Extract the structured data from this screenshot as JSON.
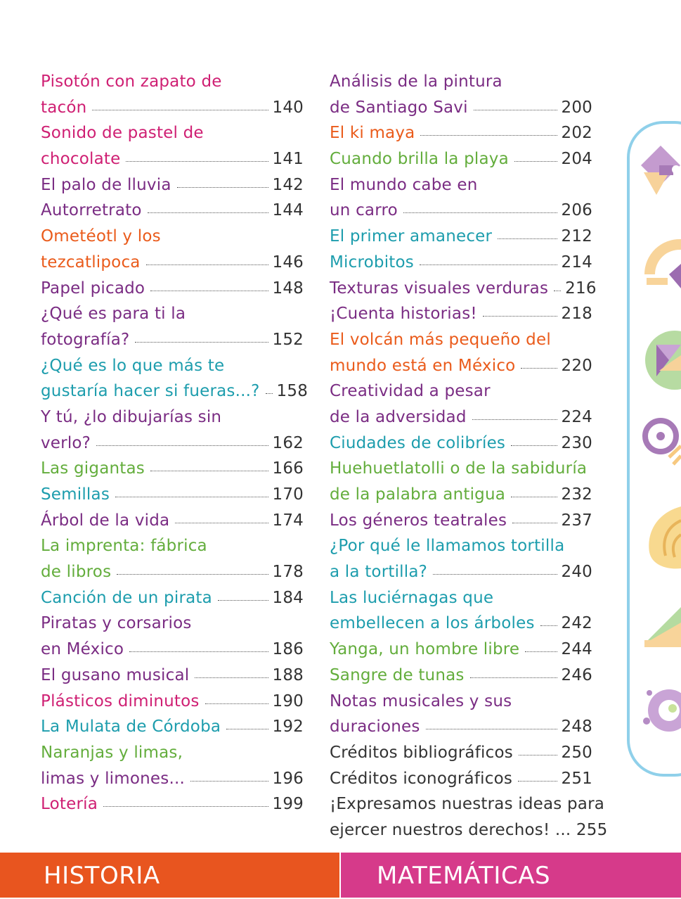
{
  "colors": {
    "magenta": "#cf1f73",
    "purple": "#7a2c83",
    "orange": "#ea5b1b",
    "teal": "#1d9dad",
    "green": "#63ad3c",
    "dark": "#333333"
  },
  "left_column": [
    {
      "text": "Pisotón con zapato de",
      "page": "",
      "color": "magenta"
    },
    {
      "text": "tacón",
      "page": "140",
      "color": "magenta"
    },
    {
      "text": "Sonido de pastel de",
      "page": "",
      "color": "magenta"
    },
    {
      "text": "chocolate",
      "page": "141",
      "color": "magenta"
    },
    {
      "text": "El palo de lluvia",
      "page": "142",
      "color": "purple"
    },
    {
      "text": "Autorretrato",
      "page": "144",
      "color": "purple"
    },
    {
      "text": "Ometéotl y los",
      "page": "",
      "color": "orange"
    },
    {
      "text": "tezcatlipoca",
      "page": "146",
      "color": "orange"
    },
    {
      "text": "Papel picado",
      "page": "148",
      "color": "purple"
    },
    {
      "text": "¿Qué es para ti la",
      "page": "",
      "color": "purple"
    },
    {
      "text": "fotografía?",
      "page": "152",
      "color": "purple"
    },
    {
      "text": "¿Qué es lo que más te",
      "page": "",
      "color": "teal"
    },
    {
      "text": "gustaría hacer si fueras...?",
      "page": "158",
      "color": "teal"
    },
    {
      "text": "Y tú, ¿lo dibujarías sin",
      "page": "",
      "color": "purple"
    },
    {
      "text": "verlo?",
      "page": "162",
      "color": "purple"
    },
    {
      "text": "Las gigantas",
      "page": "166",
      "color": "green"
    },
    {
      "text": "Semillas",
      "page": "170",
      "color": "teal"
    },
    {
      "text": "Árbol de la vida",
      "page": "174",
      "color": "purple"
    },
    {
      "text": "La imprenta: fábrica",
      "page": "",
      "color": "green"
    },
    {
      "text": "de libros",
      "page": "178",
      "color": "green"
    },
    {
      "text": "Canción de un pirata",
      "page": "184",
      "color": "teal"
    },
    {
      "text": "Piratas y corsarios",
      "page": "",
      "color": "purple"
    },
    {
      "text": "en México",
      "page": "186",
      "color": "purple"
    },
    {
      "text": "El gusano musical",
      "page": "188",
      "color": "purple"
    },
    {
      "text": "Plásticos diminutos",
      "page": "190",
      "color": "magenta"
    },
    {
      "text": "La Mulata de Córdoba",
      "page": "192",
      "color": "teal"
    },
    {
      "text": "Naranjas y limas,",
      "page": "",
      "color": "green"
    },
    {
      "text": "limas y limones...",
      "page": "196",
      "color": "purple"
    },
    {
      "text": "Lotería",
      "page": "199",
      "color": "magenta"
    }
  ],
  "right_column": [
    {
      "text": "Análisis de la pintura",
      "page": "",
      "color": "purple"
    },
    {
      "text": "de Santiago Savi",
      "page": "200",
      "color": "purple"
    },
    {
      "text": "El ki maya",
      "page": "202",
      "color": "orange"
    },
    {
      "text": "Cuando brilla la playa",
      "page": "204",
      "color": "green"
    },
    {
      "text": "El mundo cabe en",
      "page": "",
      "color": "purple"
    },
    {
      "text": "un carro",
      "page": "206",
      "color": "purple"
    },
    {
      "text": "El primer amanecer",
      "page": "212",
      "color": "teal"
    },
    {
      "text": "Microbitos",
      "page": "214",
      "color": "teal"
    },
    {
      "text": "Texturas visuales verduras",
      "page": "216",
      "color": "purple"
    },
    {
      "text": "¡Cuenta historias!",
      "page": "218",
      "color": "purple"
    },
    {
      "text": "El volcán más pequeño del",
      "page": "",
      "color": "orange"
    },
    {
      "text": "mundo está en México",
      "page": "220",
      "color": "orange"
    },
    {
      "text": "Creatividad a pesar",
      "page": "",
      "color": "purple"
    },
    {
      "text": "de la adversidad",
      "page": "224",
      "color": "purple"
    },
    {
      "text": "Ciudades de colibríes",
      "page": "230",
      "color": "teal"
    },
    {
      "text": "Huehuetlatolli o de la sabiduría",
      "page": "",
      "color": "green"
    },
    {
      "text": "de la palabra antigua",
      "page": "232",
      "color": "green"
    },
    {
      "text": "Los géneros teatrales",
      "page": "237",
      "color": "purple"
    },
    {
      "text": "¿Por qué le llamamos tortilla",
      "page": "",
      "color": "teal"
    },
    {
      "text": "a la tortilla?",
      "page": "240",
      "color": "teal"
    },
    {
      "text": "Las luciérnagas que",
      "page": "",
      "color": "teal"
    },
    {
      "text": "embellecen a los árboles",
      "page": "242",
      "color": "teal"
    },
    {
      "text": "Yanga, un hombre libre",
      "page": "244",
      "color": "green"
    },
    {
      "text": "Sangre de tunas",
      "page": "246",
      "color": "green"
    },
    {
      "text": "Notas musicales y sus",
      "page": "",
      "color": "purple"
    },
    {
      "text": "duraciones",
      "page": "248",
      "color": "purple"
    },
    {
      "text": "Créditos bibliográficos",
      "page": "250",
      "color": "dark"
    },
    {
      "text": "Créditos iconográficos",
      "page": "251",
      "color": "dark"
    },
    {
      "text": "¡Expresamos nuestras ideas para",
      "page": "",
      "color": "dark"
    },
    {
      "text": "ejercer nuestros derechos! ... 255",
      "page": "",
      "color": "dark"
    }
  ],
  "side_icons": [
    "purple-yellow-geometric-icon",
    "yellow-arc-icon",
    "green-purple-envelope-icon",
    "purple-swirl-icon",
    "yellow-shell-icon",
    "green-yellow-fan-icon",
    "purple-splash-icon"
  ],
  "footer": {
    "left_label": "HISTORIA",
    "left_color": "#e8551f",
    "right_label": "MATEMÁTICAS",
    "right_color": "#d63a8a"
  }
}
